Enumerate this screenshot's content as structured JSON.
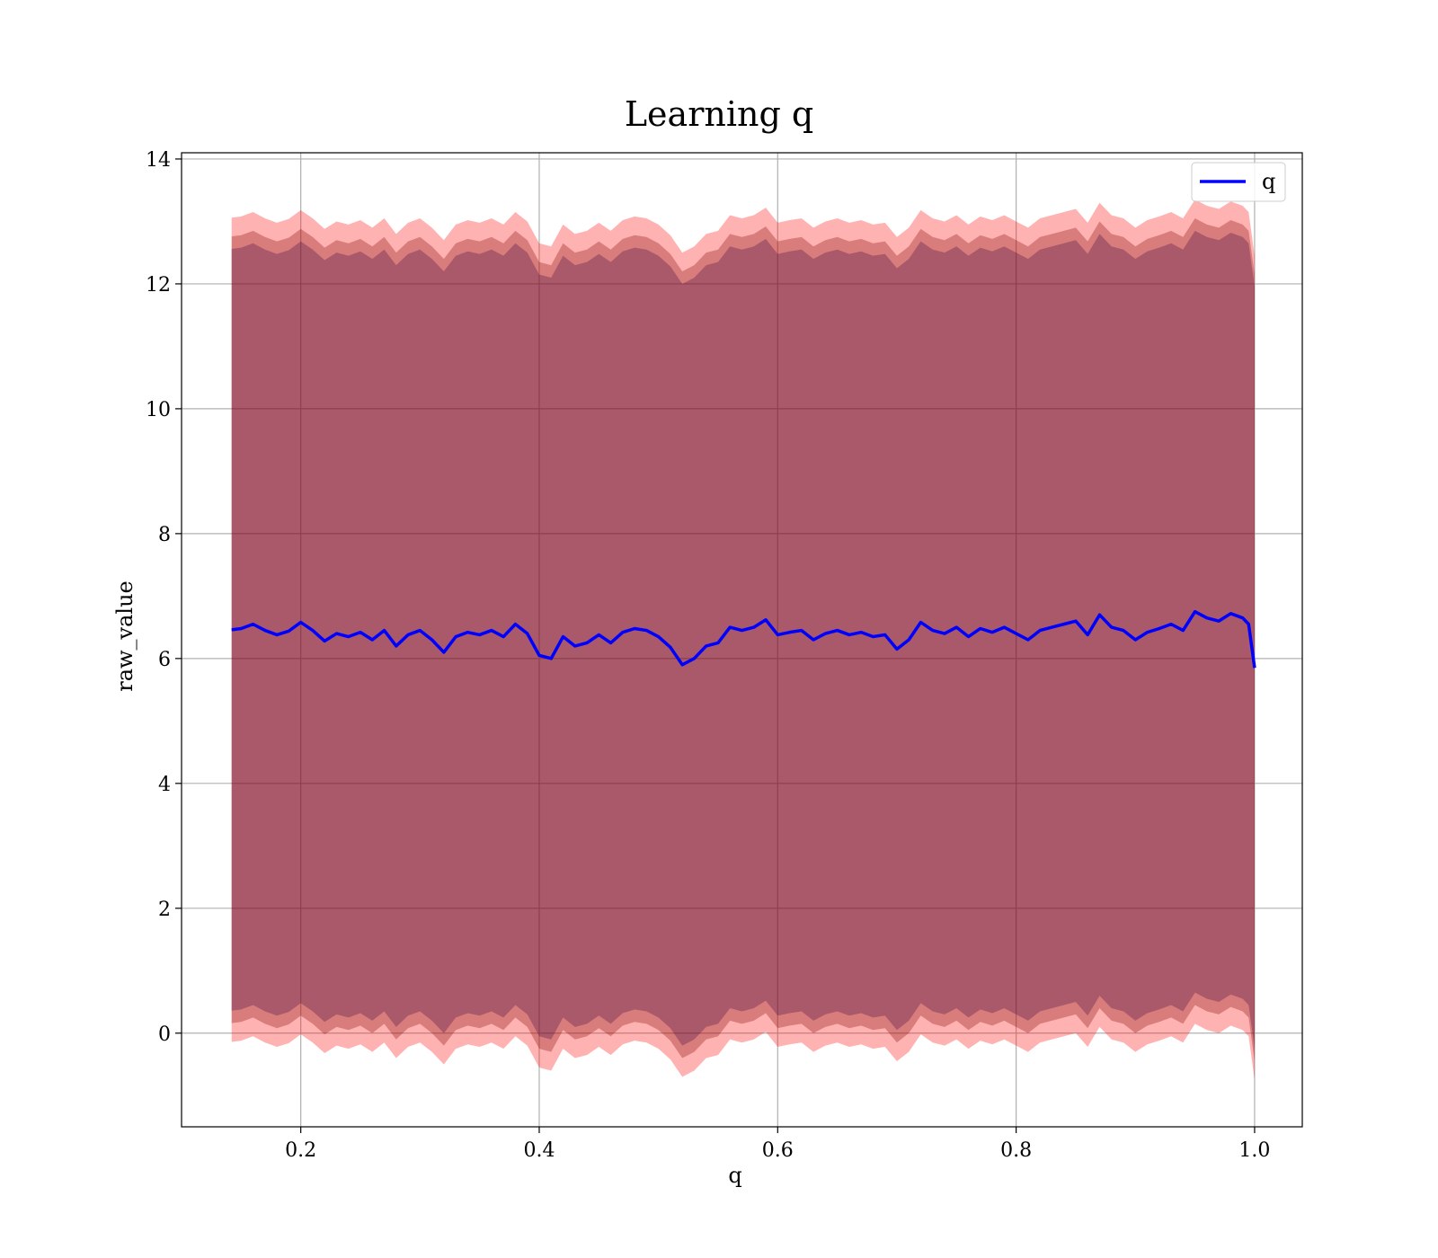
{
  "chart_data": {
    "type": "area",
    "title": "Learning q",
    "xlabel": "q",
    "ylabel": "raw_value",
    "xlim": [
      0.1,
      1.04
    ],
    "ylim": [
      -1.5,
      14.1
    ],
    "grid": true,
    "legend_position": "top-right",
    "xticks": [
      {
        "value": 0.2,
        "label": "0.2"
      },
      {
        "value": 0.4,
        "label": "0.4"
      },
      {
        "value": 0.6,
        "label": "0.6"
      },
      {
        "value": 0.8,
        "label": "0.8"
      },
      {
        "value": 1.0,
        "label": "1.0"
      }
    ],
    "yticks": [
      {
        "value": 0,
        "label": "0"
      },
      {
        "value": 2,
        "label": "2"
      },
      {
        "value": 4,
        "label": "4"
      },
      {
        "value": 6,
        "label": "6"
      },
      {
        "value": 8,
        "label": "8"
      },
      {
        "value": 10,
        "label": "10"
      },
      {
        "value": 12,
        "label": "12"
      },
      {
        "value": 14,
        "label": "14"
      }
    ],
    "x": [
      0.142,
      0.15,
      0.16,
      0.17,
      0.18,
      0.19,
      0.2,
      0.21,
      0.22,
      0.23,
      0.24,
      0.25,
      0.26,
      0.27,
      0.28,
      0.29,
      0.3,
      0.31,
      0.32,
      0.33,
      0.34,
      0.35,
      0.36,
      0.37,
      0.38,
      0.39,
      0.4,
      0.41,
      0.42,
      0.43,
      0.44,
      0.45,
      0.46,
      0.47,
      0.48,
      0.49,
      0.5,
      0.51,
      0.52,
      0.53,
      0.54,
      0.55,
      0.56,
      0.57,
      0.58,
      0.59,
      0.6,
      0.61,
      0.62,
      0.63,
      0.64,
      0.65,
      0.66,
      0.67,
      0.68,
      0.69,
      0.7,
      0.71,
      0.72,
      0.73,
      0.74,
      0.75,
      0.76,
      0.77,
      0.78,
      0.79,
      0.8,
      0.81,
      0.82,
      0.83,
      0.84,
      0.85,
      0.86,
      0.87,
      0.88,
      0.89,
      0.9,
      0.91,
      0.92,
      0.93,
      0.94,
      0.95,
      0.96,
      0.97,
      0.98,
      0.99,
      0.995,
      1.0
    ],
    "series": [
      {
        "name": "q",
        "color": "#0000ff",
        "values": [
          6.46,
          6.48,
          6.55,
          6.45,
          6.38,
          6.44,
          6.58,
          6.45,
          6.28,
          6.4,
          6.35,
          6.42,
          6.3,
          6.45,
          6.2,
          6.38,
          6.45,
          6.3,
          6.1,
          6.35,
          6.42,
          6.38,
          6.45,
          6.35,
          6.55,
          6.4,
          6.05,
          6.0,
          6.35,
          6.2,
          6.25,
          6.38,
          6.25,
          6.42,
          6.48,
          6.45,
          6.35,
          6.18,
          5.9,
          6.0,
          6.2,
          6.25,
          6.5,
          6.45,
          6.5,
          6.62,
          6.38,
          6.42,
          6.45,
          6.3,
          6.4,
          6.45,
          6.38,
          6.42,
          6.35,
          6.38,
          6.15,
          6.3,
          6.58,
          6.45,
          6.4,
          6.5,
          6.35,
          6.48,
          6.42,
          6.5,
          6.4,
          6.3,
          6.45,
          6.5,
          6.55,
          6.6,
          6.38,
          6.7,
          6.5,
          6.45,
          6.3,
          6.42,
          6.48,
          6.55,
          6.45,
          6.75,
          6.65,
          6.6,
          6.72,
          6.65,
          6.55,
          5.85
        ]
      }
    ],
    "bands": [
      {
        "color": "#ff0000",
        "opacity": 0.3,
        "offset": 6.6
      },
      {
        "color": "#800000",
        "opacity": 0.3,
        "offset": 6.3
      },
      {
        "color": "#3a0a40",
        "opacity": 0.3,
        "offset": 6.1
      }
    ]
  }
}
